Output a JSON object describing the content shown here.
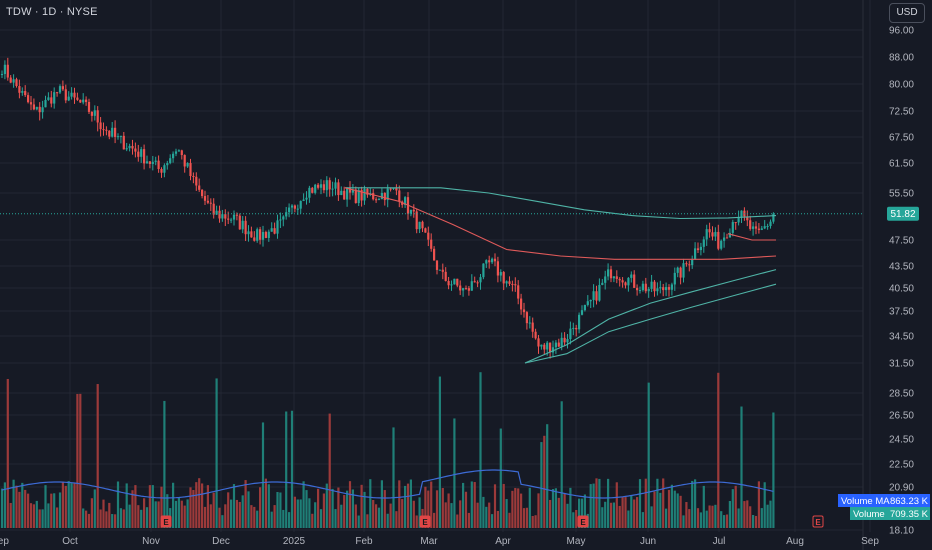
{
  "header": {
    "symbol_label": "TDW · 1D · NYSE",
    "currency": "USD"
  },
  "colors": {
    "background": "#161a25",
    "grid": "#232733",
    "axis_text": "#b2b5be",
    "up": "#26a69a",
    "down": "#ef5350",
    "vol_up": "#1f7f77",
    "vol_down": "#9c3a3a",
    "sma_slow": "#4fb3a6",
    "sma_mid": "#e05a5a",
    "volume_ma": "#3d6bd6",
    "last_price_bg": "#26a69a",
    "volume_ma_label_bg": "#2962ff",
    "volume_label_bg": "#26a69a",
    "earnings_marker": "#e04646"
  },
  "chart_data": {
    "type": "candlestick",
    "y_scale": "log",
    "y_ticks": [
      "96.00",
      "88.00",
      "80.00",
      "72.50",
      "67.50",
      "61.50",
      "55.50",
      "47.50",
      "43.50",
      "40.50",
      "37.50",
      "34.50",
      "31.50",
      "28.50",
      "26.50",
      "24.50",
      "22.50",
      "20.90",
      "18.10"
    ],
    "x_ticks": [
      "Sep",
      "Oct",
      "Nov",
      "Dec",
      "2025",
      "Feb",
      "Mar",
      "Apr",
      "May",
      "Jun",
      "Jul",
      "Aug",
      "Sep"
    ],
    "last_price": "51.82",
    "volume_ma_label": "Volume MA",
    "volume_ma_value": "863.23 K",
    "volume_label": "Volume",
    "volume_value": "709.35 K",
    "earnings_markers": [
      "Nov",
      "Mar",
      "May",
      "Aug"
    ],
    "earnings_glyph": "E",
    "price_anchors": [
      [
        "Sep",
        85
      ],
      [
        "Sep",
        72
      ],
      [
        "Sep",
        78
      ],
      [
        "Oct",
        74
      ],
      [
        "Oct",
        68
      ],
      [
        "Oct",
        64
      ],
      [
        "Nov",
        60
      ],
      [
        "Nov",
        65
      ],
      [
        "Nov",
        57
      ],
      [
        "Nov",
        52
      ],
      [
        "Dec",
        51
      ],
      [
        "Dec",
        48
      ],
      [
        "Dec",
        50
      ],
      [
        "2025",
        56
      ],
      [
        "2025",
        57
      ],
      [
        "2025",
        55
      ],
      [
        "Feb",
        55
      ],
      [
        "Feb",
        56
      ],
      [
        "Feb",
        50
      ],
      [
        "Mar",
        42
      ],
      [
        "Mar",
        40
      ],
      [
        "Mar",
        44
      ],
      [
        "Apr",
        40
      ],
      [
        "Apr",
        33
      ],
      [
        "Apr",
        34
      ],
      [
        "May",
        38
      ],
      [
        "May",
        43
      ],
      [
        "May",
        41
      ],
      [
        "Jun",
        40
      ],
      [
        "Jun",
        43
      ],
      [
        "Jun",
        49
      ],
      [
        "Jul",
        47
      ],
      [
        "Jul",
        52
      ],
      [
        "Jul",
        48
      ],
      [
        "Jul",
        51.82
      ]
    ],
    "moving_averages": [
      {
        "name": "",
        "color_key": "sma_slow",
        "values": [
          56.5,
          56.5,
          56.5,
          55.5,
          54,
          52.5,
          51.5,
          51,
          51.1,
          51.5
        ]
      },
      {
        "name": "",
        "color_key": "sma_mid",
        "values": [
          56.5,
          54,
          50,
          46,
          45,
          44.5,
          44.5,
          44.5,
          45
        ]
      },
      {
        "name": "",
        "color_key": "sma_slow",
        "values": [
          31.5,
          33.5,
          36.5,
          38.5,
          40,
          41.5,
          43
        ]
      },
      {
        "name": "",
        "color_key": "sma_slow",
        "values": [
          31.5,
          32.5,
          35,
          36.5,
          38,
          39.5,
          41
        ]
      },
      {
        "name": "",
        "color_key": "sma_mid",
        "values": [
          48.5,
          47.5,
          47.5
        ]
      }
    ]
  }
}
